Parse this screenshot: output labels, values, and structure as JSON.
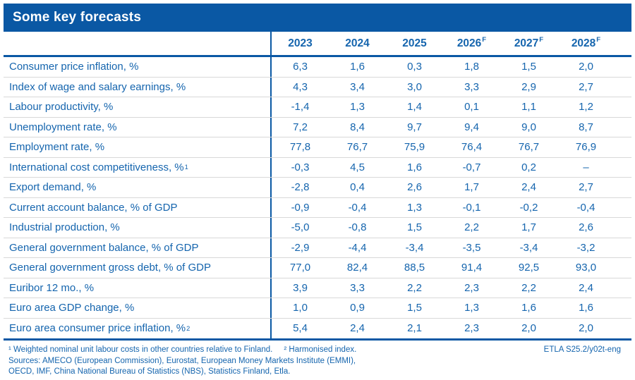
{
  "chart_data": {
    "type": "table",
    "title": "Some key forecasts",
    "columns": [
      {
        "label": "2023",
        "sup": ""
      },
      {
        "label": "2024",
        "sup": ""
      },
      {
        "label": "2025",
        "sup": ""
      },
      {
        "label": "2026",
        "sup": "F"
      },
      {
        "label": "2027",
        "sup": "F"
      },
      {
        "label": "2028",
        "sup": "F"
      }
    ],
    "rows": [
      {
        "label": "Consumer price inflation, %",
        "sup": "",
        "values": [
          "6,3",
          "1,6",
          "0,3",
          "1,8",
          "1,5",
          "2,0"
        ]
      },
      {
        "label": "Index of wage and salary earnings, %",
        "sup": "",
        "values": [
          "4,3",
          "3,4",
          "3,0",
          "3,3",
          "2,9",
          "2,7"
        ]
      },
      {
        "label": "Labour productivity, %",
        "sup": "",
        "values": [
          "-1,4",
          "1,3",
          "1,4",
          "0,1",
          "1,1",
          "1,2"
        ]
      },
      {
        "label": "Unemployment rate, %",
        "sup": "",
        "values": [
          "7,2",
          "8,4",
          "9,7",
          "9,4",
          "9,0",
          "8,7"
        ]
      },
      {
        "label": "Employment rate, %",
        "sup": "",
        "values": [
          "77,8",
          "76,7",
          "75,9",
          "76,4",
          "76,7",
          "76,9"
        ]
      },
      {
        "label": "International cost competitiveness, %",
        "sup": "1",
        "values": [
          "-0,3",
          "4,5",
          "1,6",
          "-0,7",
          "0,2",
          "–"
        ]
      },
      {
        "label": "Export demand, %",
        "sup": "",
        "values": [
          "-2,8",
          "0,4",
          "2,6",
          "1,7",
          "2,4",
          "2,7"
        ]
      },
      {
        "label": "Current account balance, % of GDP",
        "sup": "",
        "values": [
          "-0,9",
          "-0,4",
          "1,3",
          "-0,1",
          "-0,2",
          "-0,4"
        ]
      },
      {
        "label": "Industrial production, %",
        "sup": "",
        "values": [
          "-5,0",
          "-0,8",
          "1,5",
          "2,2",
          "1,7",
          "2,6"
        ]
      },
      {
        "label": "General government balance, % of GDP",
        "sup": "",
        "values": [
          "-2,9",
          "-4,4",
          "-3,4",
          "-3,5",
          "-3,4",
          "-3,2"
        ]
      },
      {
        "label": "General government gross debt, % of GDP",
        "sup": "",
        "values": [
          "77,0",
          "82,4",
          "88,5",
          "91,4",
          "92,5",
          "93,0"
        ]
      },
      {
        "label": "Euribor 12 mo., %",
        "sup": "",
        "values": [
          "3,9",
          "3,3",
          "2,2",
          "2,3",
          "2,2",
          "2,4"
        ]
      },
      {
        "label": "Euro area GDP change, %",
        "sup": "",
        "values": [
          "1,0",
          "0,9",
          "1,5",
          "1,3",
          "1,6",
          "1,6"
        ]
      },
      {
        "label": "Euro area consumer price inflation, %",
        "sup": "2",
        "values": [
          "5,4",
          "2,4",
          "2,1",
          "2,3",
          "2,0",
          "2,0"
        ]
      }
    ],
    "footer": {
      "footnote_1": "¹  Weighted nominal unit labour costs in other countries relative to Finland.",
      "footnote_2": "²  Harmonised index.",
      "doc_ref": "ETLA S25.2/y02t-eng",
      "sources_line_1": "Sources: AMECO (European Commission), Eurostat, European Money Markets Institute (EMMI),",
      "sources_line_2": "OECD, IMF, China National Bureau of Statistics (NBS), Statistics Finland, Etla."
    }
  },
  "colors": {
    "primary_blue": "#0a58a4",
    "text_blue": "#1565ae",
    "row_separator": "#d8d8d8",
    "banner_text": "#ffffff"
  }
}
